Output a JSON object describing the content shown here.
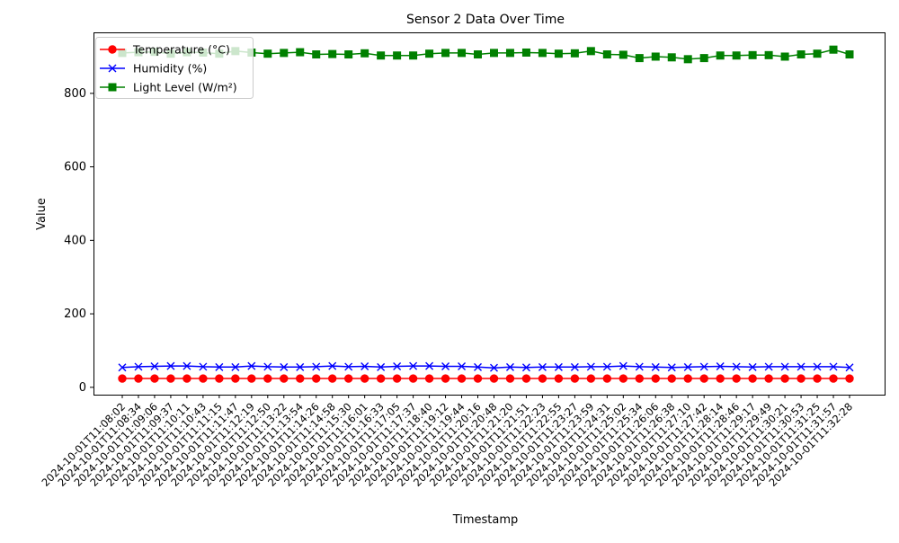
{
  "chart_data": {
    "type": "line",
    "title": "Sensor 2 Data Over Time",
    "xlabel": "Timestamp",
    "ylabel": "Value",
    "ylim": [
      -20,
      966
    ],
    "yticks": [
      0,
      200,
      400,
      600,
      800
    ],
    "grid": false,
    "legend_position": "top-left",
    "x": [
      "2024-10-01T11:08:02",
      "2024-10-01T11:08:34",
      "2024-10-01T11:09:06",
      "2024-10-01T11:09:37",
      "2024-10-01T11:10:11",
      "2024-10-01T11:10:43",
      "2024-10-01T11:11:15",
      "2024-10-01T11:11:47",
      "2024-10-01T11:12:19",
      "2024-10-01T11:12:50",
      "2024-10-01T11:13:22",
      "2024-10-01T11:13:54",
      "2024-10-01T11:14:26",
      "2024-10-01T11:14:58",
      "2024-10-01T11:15:30",
      "2024-10-01T11:16:01",
      "2024-10-01T11:16:33",
      "2024-10-01T11:17:05",
      "2024-10-01T11:17:37",
      "2024-10-01T11:18:40",
      "2024-10-01T11:19:12",
      "2024-10-01T11:19:44",
      "2024-10-01T11:20:16",
      "2024-10-01T11:20:48",
      "2024-10-01T11:21:20",
      "2024-10-01T11:21:51",
      "2024-10-01T11:22:23",
      "2024-10-01T11:22:55",
      "2024-10-01T11:23:27",
      "2024-10-01T11:23:59",
      "2024-10-01T11:24:31",
      "2024-10-01T11:25:02",
      "2024-10-01T11:25:34",
      "2024-10-01T11:26:06",
      "2024-10-01T11:26:38",
      "2024-10-01T11:27:10",
      "2024-10-01T11:27:42",
      "2024-10-01T11:28:14",
      "2024-10-01T11:28:46",
      "2024-10-01T11:29:17",
      "2024-10-01T11:29:49",
      "2024-10-01T11:30:21",
      "2024-10-01T11:30:53",
      "2024-10-01T11:31:25",
      "2024-10-01T11:31:57",
      "2024-10-01T11:32:28"
    ],
    "series": [
      {
        "name": "Temperature (°C)",
        "color": "#ff0000",
        "marker": "circle",
        "values": [
          24,
          24,
          24,
          24,
          24,
          24,
          24,
          24,
          24,
          24,
          24,
          24,
          24,
          24,
          24,
          24,
          24,
          24,
          24,
          24,
          24,
          24,
          24,
          24,
          24,
          24,
          24,
          24,
          24,
          24,
          24,
          24,
          24,
          24,
          24,
          24,
          24,
          24,
          24,
          24,
          24,
          24,
          24,
          24,
          24,
          24
        ]
      },
      {
        "name": "Humidity (%)",
        "color": "#0000ff",
        "marker": "x",
        "values": [
          54,
          56,
          57,
          58,
          58,
          56,
          55,
          55,
          58,
          56,
          55,
          55,
          56,
          58,
          56,
          57,
          55,
          57,
          58,
          58,
          57,
          57,
          55,
          53,
          55,
          54,
          55,
          55,
          55,
          56,
          56,
          58,
          56,
          55,
          54,
          55,
          56,
          57,
          56,
          55,
          56,
          56,
          56,
          56,
          56,
          54
        ]
      },
      {
        "name": "Light Level (W/m²)",
        "color": "#008000",
        "marker": "square",
        "values": [
          910,
          912,
          913,
          908,
          912,
          911,
          908,
          915,
          911,
          908,
          910,
          912,
          906,
          907,
          906,
          909,
          903,
          903,
          903,
          908,
          910,
          910,
          906,
          910,
          910,
          911,
          910,
          908,
          909,
          915,
          906,
          905,
          896,
          900,
          898,
          893,
          896,
          903,
          903,
          904,
          904,
          900,
          906,
          908,
          919,
          906
        ]
      }
    ]
  }
}
